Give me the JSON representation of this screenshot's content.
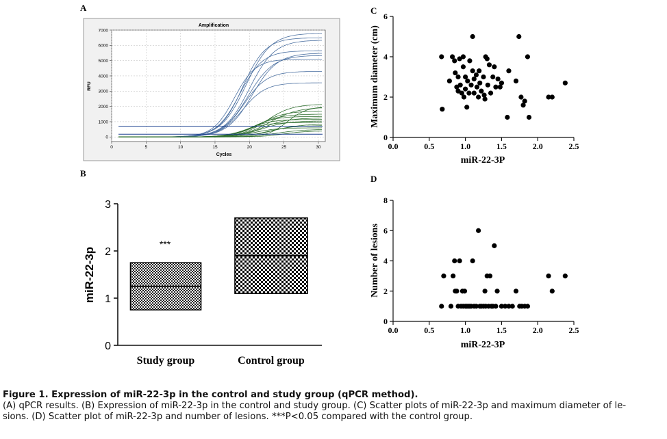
{
  "panels": {
    "A": {
      "label": "A"
    },
    "B": {
      "label": "B"
    },
    "C": {
      "label": "C"
    },
    "D": {
      "label": "D"
    }
  },
  "chart_data": [
    {
      "panel": "A",
      "type": "line",
      "title": "Amplification",
      "xlabel": "Cycles",
      "ylabel": "RFU",
      "xlim": [
        0,
        31
      ],
      "ylim": [
        -300,
        7000
      ],
      "xticks": [
        0,
        5,
        10,
        15,
        20,
        25,
        30
      ],
      "yticks": [
        0,
        1000,
        2000,
        3000,
        4000,
        5000,
        6000,
        7000
      ],
      "grid": true,
      "series_groups": [
        {
          "color": "#4a6fa0",
          "curves": [
            {
              "plateau": 6800,
              "mid": 19.5,
              "k": 0.55
            },
            {
              "plateau": 6500,
              "mid": 19.0,
              "k": 0.6
            },
            {
              "plateau": 6350,
              "mid": 20.0,
              "k": 0.55
            },
            {
              "plateau": 5650,
              "mid": 18.6,
              "k": 0.6
            },
            {
              "plateau": 5500,
              "mid": 20.4,
              "k": 0.55
            },
            {
              "plateau": 5350,
              "mid": 19.8,
              "k": 0.55
            },
            {
              "plateau": 5100,
              "mid": 17.8,
              "k": 0.65
            },
            {
              "plateau": 4300,
              "mid": 19.2,
              "k": 0.6
            },
            {
              "plateau": 3550,
              "mid": 19.0,
              "k": 0.6
            }
          ]
        },
        {
          "color": "#2f6f2f",
          "curves": [
            {
              "plateau": 2150,
              "mid": 22.5,
              "k": 0.55
            },
            {
              "plateau": 1950,
              "mid": 23.0,
              "k": 0.5
            },
            {
              "plateau": 1700,
              "mid": 21.5,
              "k": 0.55
            },
            {
              "plateau": 1500,
              "mid": 21.0,
              "k": 0.55
            },
            {
              "plateau": 1350,
              "mid": 20.5,
              "k": 0.6
            },
            {
              "plateau": 1250,
              "mid": 22.0,
              "k": 0.55
            },
            {
              "plateau": 1150,
              "mid": 20.0,
              "k": 0.6
            },
            {
              "plateau": 1050,
              "mid": 21.8,
              "k": 0.55
            },
            {
              "plateau": 950,
              "mid": 19.5,
              "k": 0.6
            },
            {
              "plateau": 850,
              "mid": 23.5,
              "k": 0.5
            },
            {
              "plateau": 750,
              "mid": 22.8,
              "k": 0.55
            },
            {
              "plateau": 600,
              "mid": 20.8,
              "k": 0.6
            },
            {
              "plateau": 500,
              "mid": 24.0,
              "k": 0.5
            },
            {
              "plateau": 2000,
              "mid": 25.5,
              "k": 0.7
            },
            {
              "plateau": 400,
              "mid": 25.0,
              "k": 0.6
            }
          ]
        },
        {
          "color": "#1a3f8f",
          "flat_lines": [
            {
              "y": 700,
              "from": 1
            },
            {
              "y": 180,
              "from": 1
            }
          ]
        }
      ]
    },
    {
      "panel": "B",
      "type": "box",
      "ylabel": "miR-22-3p",
      "ylim": [
        0,
        3
      ],
      "yticks": [
        0,
        1,
        2,
        3
      ],
      "categories": [
        "Study group",
        "Control group"
      ],
      "boxes": [
        {
          "category": "Study group",
          "q1": 0.75,
          "median": 1.25,
          "q3": 1.75
        },
        {
          "category": "Control group",
          "q1": 1.1,
          "median": 1.9,
          "q3": 2.7
        }
      ],
      "annotation": "***"
    },
    {
      "panel": "C",
      "type": "scatter",
      "xlabel": "miR-22-3P",
      "ylabel": "Maximum diameter (cm)",
      "xlim": [
        0,
        2.5
      ],
      "ylim": [
        0,
        6
      ],
      "xticks": [
        "0.0",
        "0.5",
        "1.0",
        "1.5",
        "2.0",
        "2.5"
      ],
      "yticks": [
        "0",
        "2",
        "4",
        "6"
      ],
      "points": [
        [
          0.67,
          4.0
        ],
        [
          0.68,
          1.4
        ],
        [
          0.78,
          2.8
        ],
        [
          0.82,
          4.0
        ],
        [
          0.85,
          3.8
        ],
        [
          0.86,
          3.2
        ],
        [
          0.88,
          2.5
        ],
        [
          0.9,
          2.3
        ],
        [
          0.9,
          3.0
        ],
        [
          0.92,
          3.9
        ],
        [
          0.93,
          2.6
        ],
        [
          0.95,
          2.2
        ],
        [
          0.97,
          4.0
        ],
        [
          0.97,
          3.5
        ],
        [
          0.98,
          2.0
        ],
        [
          1.0,
          3.0
        ],
        [
          1.0,
          2.4
        ],
        [
          1.02,
          1.5
        ],
        [
          1.03,
          2.8
        ],
        [
          1.05,
          2.2
        ],
        [
          1.06,
          3.8
        ],
        [
          1.08,
          2.6
        ],
        [
          1.1,
          5.0
        ],
        [
          1.1,
          3.3
        ],
        [
          1.12,
          2.9
        ],
        [
          1.12,
          2.2
        ],
        [
          1.15,
          3.1
        ],
        [
          1.16,
          2.5
        ],
        [
          1.18,
          2.0
        ],
        [
          1.19,
          3.3
        ],
        [
          1.2,
          2.7
        ],
        [
          1.22,
          2.3
        ],
        [
          1.25,
          3.0
        ],
        [
          1.26,
          2.1
        ],
        [
          1.27,
          1.9
        ],
        [
          1.28,
          4.0
        ],
        [
          1.3,
          3.9
        ],
        [
          1.31,
          2.6
        ],
        [
          1.33,
          3.6
        ],
        [
          1.35,
          2.2
        ],
        [
          1.38,
          3.0
        ],
        [
          1.4,
          3.5
        ],
        [
          1.42,
          2.5
        ],
        [
          1.45,
          2.9
        ],
        [
          1.48,
          2.5
        ],
        [
          1.5,
          2.7
        ],
        [
          1.58,
          1.0
        ],
        [
          1.6,
          3.3
        ],
        [
          1.7,
          2.8
        ],
        [
          1.74,
          5.0
        ],
        [
          1.77,
          2.0
        ],
        [
          1.8,
          1.6
        ],
        [
          1.82,
          1.8
        ],
        [
          1.86,
          4.0
        ],
        [
          1.88,
          1.0
        ],
        [
          2.15,
          2.0
        ],
        [
          2.2,
          2.0
        ],
        [
          2.38,
          2.7
        ]
      ]
    },
    {
      "panel": "D",
      "type": "scatter",
      "xlabel": "miR-22-3P",
      "ylabel": "Number of lesions",
      "xlim": [
        0,
        2.5
      ],
      "ylim": [
        0,
        8
      ],
      "xticks": [
        "0.0",
        "0.5",
        "1.0",
        "1.5",
        "2.0",
        "2.5"
      ],
      "yticks": [
        "0",
        "2",
        "4",
        "6",
        "8"
      ],
      "points": [
        [
          0.67,
          1
        ],
        [
          0.7,
          3
        ],
        [
          0.8,
          1
        ],
        [
          0.83,
          3
        ],
        [
          0.85,
          4
        ],
        [
          0.86,
          2
        ],
        [
          0.88,
          2
        ],
        [
          0.9,
          1
        ],
        [
          0.92,
          4
        ],
        [
          0.94,
          1
        ],
        [
          0.96,
          2
        ],
        [
          0.97,
          1
        ],
        [
          0.99,
          2
        ],
        [
          1.0,
          1
        ],
        [
          1.02,
          1
        ],
        [
          1.04,
          1
        ],
        [
          1.06,
          1
        ],
        [
          1.08,
          1
        ],
        [
          1.1,
          4
        ],
        [
          1.12,
          1
        ],
        [
          1.15,
          1
        ],
        [
          1.18,
          6
        ],
        [
          1.2,
          1
        ],
        [
          1.22,
          1
        ],
        [
          1.25,
          1
        ],
        [
          1.27,
          2
        ],
        [
          1.28,
          1
        ],
        [
          1.3,
          3
        ],
        [
          1.32,
          1
        ],
        [
          1.34,
          3
        ],
        [
          1.36,
          1
        ],
        [
          1.38,
          1
        ],
        [
          1.4,
          5
        ],
        [
          1.42,
          1
        ],
        [
          1.44,
          2
        ],
        [
          1.5,
          1
        ],
        [
          1.55,
          1
        ],
        [
          1.6,
          1
        ],
        [
          1.65,
          1
        ],
        [
          1.7,
          2
        ],
        [
          1.75,
          1
        ],
        [
          1.78,
          1
        ],
        [
          1.82,
          1
        ],
        [
          1.86,
          1
        ],
        [
          2.15,
          3
        ],
        [
          2.2,
          2
        ],
        [
          2.38,
          3
        ]
      ]
    }
  ],
  "caption": {
    "title": "Figure 1. Expression of miR-22-3p in the control and study group (qPCR method).",
    "lines": [
      "(A) qPCR results. (B) Expression of miR-22-3p in the control and study group. (C) Scatter plots of miR-22-3p and maximum diameter of le-",
      "sions. (D) Scatter plot of miR-22-3p and number of lesions. ***P<0.05 compared with the control group."
    ]
  },
  "colors": {
    "blue_curves": "#4a6fa0",
    "green_curves": "#2f6f2f",
    "flat_lines": "#1a3f8f",
    "points": "#000000"
  }
}
